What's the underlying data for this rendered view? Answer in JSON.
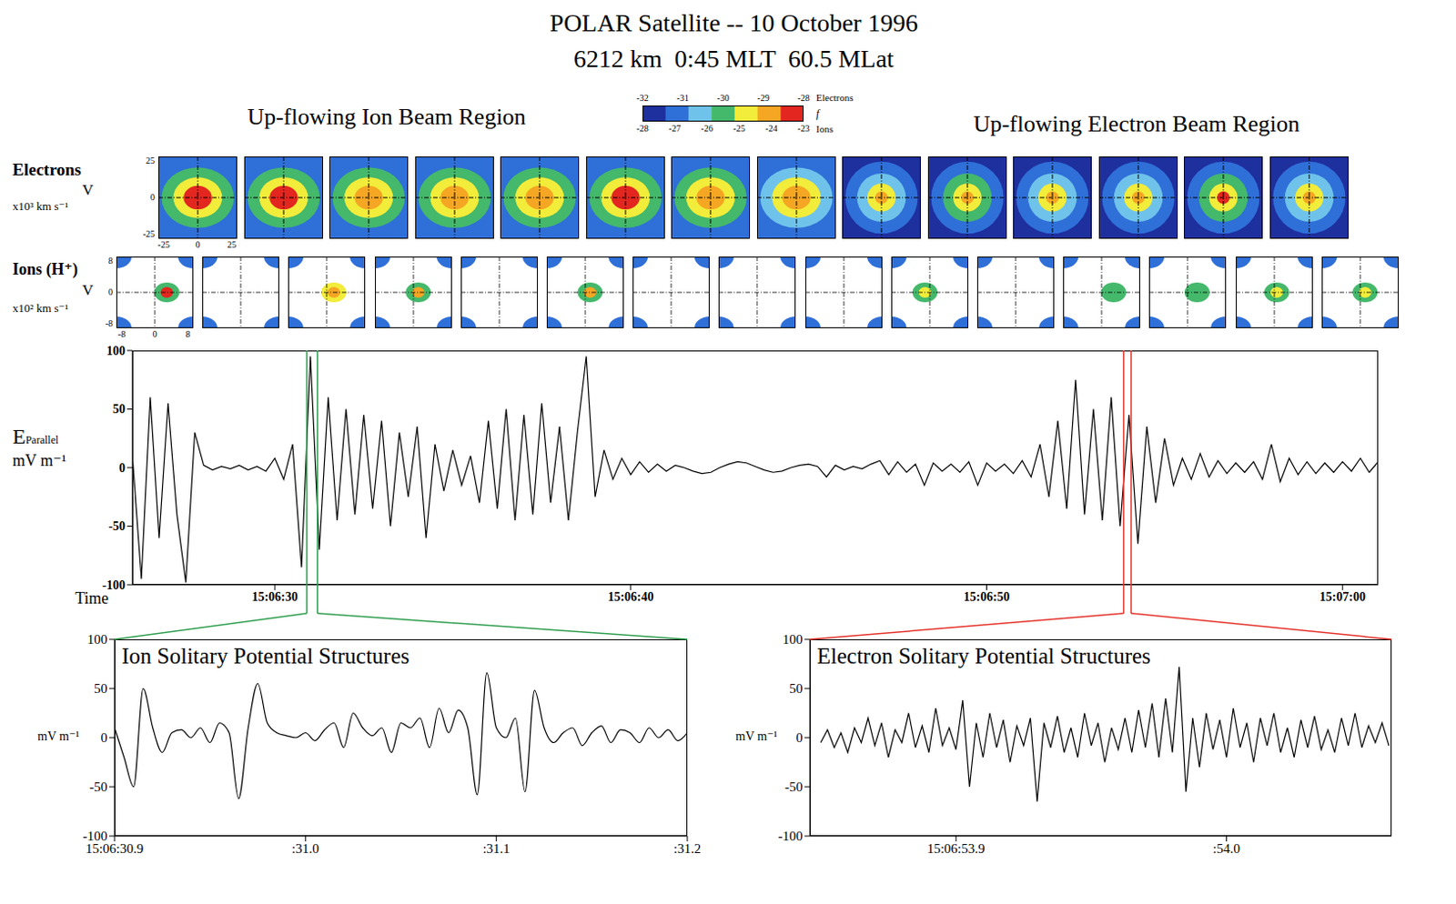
{
  "title": "POLAR Satellite -- 10 October 1996",
  "subtitle": "6212 km  0:45 MLT  60.5 MLat",
  "regions": [
    "Up-flowing Ion Beam Region",
    "Up-flowing Electron Beam Region"
  ],
  "colorbar": {
    "label": "f",
    "colors": [
      "#1e2f9e",
      "#2f6fd8",
      "#6fc3ea",
      "#44b86b",
      "#f2ec3a",
      "#f5a623",
      "#e3261f"
    ],
    "electrons": {
      "label": "Electrons",
      "range": [
        -32,
        -28
      ],
      "ticks": [
        -32,
        -31,
        -30,
        -29,
        -28
      ]
    },
    "ions": {
      "label": "Ions",
      "range": [
        -28,
        -23
      ],
      "ticks": [
        -28,
        -27,
        -26,
        -25,
        -24,
        -23
      ]
    }
  },
  "distributions": {
    "electrons": {
      "label": "Electrons",
      "axis_label": "V",
      "unit": "x10³ km s⁻¹",
      "ticks": [
        -25,
        0,
        25
      ],
      "panels": [
        {
          "background": -31.4,
          "rings": [
            -30.3,
            -29.3,
            -28.2
          ]
        },
        {
          "background": -31.4,
          "rings": [
            -30.2,
            -29.2,
            -28.3
          ]
        },
        {
          "background": -31.3,
          "rings": [
            -30.3,
            -29.3,
            -28.4
          ]
        },
        {
          "background": -31.3,
          "rings": [
            -30.2,
            -29.2,
            -28.6
          ]
        },
        {
          "background": -31.4,
          "rings": [
            -30.3,
            -29.3,
            -28.6
          ]
        },
        {
          "background": -31.4,
          "rings": [
            -30.2,
            -29.2,
            -28.3
          ]
        },
        {
          "background": -31.3,
          "rings": [
            -30.3,
            -29.3,
            -28.5
          ]
        },
        {
          "background": -31.5,
          "rings": [
            -30.4,
            -29.3,
            -28.6
          ]
        },
        {
          "background": -32,
          "rings": [
            -31.3,
            -30.4,
            -29.4,
            -28.5
          ]
        },
        {
          "background": -32,
          "rings": [
            -31.2,
            -30.3,
            -29.4,
            -28.6
          ]
        },
        {
          "background": -32,
          "rings": [
            -31.3,
            -30.4,
            -29.5,
            -28.6
          ]
        },
        {
          "background": -32,
          "rings": [
            -31.3,
            -30.4,
            -29.4,
            -28.6
          ]
        },
        {
          "background": -32,
          "rings": [
            -31.2,
            -30.3,
            -29.3,
            -28.3
          ]
        },
        {
          "background": -32,
          "rings": [
            -31.3,
            -30.4,
            -29.4,
            -28.6
          ]
        }
      ]
    },
    "ions": {
      "label": "Ions (H⁺)",
      "axis_label": "V",
      "unit": "x10² km s⁻¹",
      "ticks": [
        -8,
        0,
        8
      ],
      "background": -27.5,
      "panels": [
        {
          "beam": [
            -25.5,
            -23.3
          ],
          "beam_v": 2.5
        },
        {
          "beam": []
        },
        {
          "beam": [
            -25,
            -23.5
          ],
          "beam_v": 1.5
        },
        {
          "beam": [
            -25.5,
            -23.8
          ],
          "beam_v": 1
        },
        {
          "beam": []
        },
        {
          "beam": [
            -25.8,
            -24
          ],
          "beam_v": 1
        },
        {
          "beam": []
        },
        {
          "beam": []
        },
        {
          "beam": []
        },
        {
          "beam": [
            -25.8,
            -24.5
          ],
          "beam_v": -1
        },
        {
          "beam": []
        },
        {
          "beam": [
            -25.5
          ],
          "beam_v": 2.5
        },
        {
          "beam": [
            -25.5
          ],
          "beam_v": 2
        },
        {
          "beam": [
            -25.8,
            -24.8
          ],
          "beam_v": 0.5
        },
        {
          "beam": [
            -25.8,
            -24.6
          ],
          "beam_v": 1
        }
      ]
    }
  },
  "chart_data": [
    {
      "type": "line",
      "ylabel": {
        "symbol": "E",
        "subscript": "Parallel",
        "unit": "mV m⁻¹"
      },
      "xlabel": "Time",
      "color": "#000000",
      "xlim": [
        26,
        61
      ],
      "ylim": [
        -100,
        100
      ],
      "xticks": [
        {
          "value": 30,
          "label": "15:06:30"
        },
        {
          "value": 40,
          "label": "15:06:40"
        },
        {
          "value": 50,
          "label": "15:06:50"
        },
        {
          "value": 60,
          "label": "15:07:00"
        }
      ],
      "yticks": [
        -100,
        -50,
        0,
        50,
        100
      ],
      "brackets": [
        {
          "x": [
            30.9,
            31.2
          ],
          "color": "#2f9e4e"
        },
        {
          "x": [
            53.85,
            54.06
          ],
          "color": "#e5332a"
        }
      ],
      "x": [
        26,
        26.25,
        26.5,
        26.75,
        27,
        27.25,
        27.5,
        27.75,
        28,
        28.25,
        28.5,
        28.75,
        29,
        29.25,
        29.5,
        29.75,
        30,
        30.25,
        30.5,
        30.75,
        31,
        31.25,
        31.5,
        31.75,
        32,
        32.25,
        32.5,
        32.75,
        33,
        33.25,
        33.5,
        33.75,
        34,
        34.25,
        34.5,
        34.75,
        35,
        35.25,
        35.5,
        35.75,
        36,
        36.25,
        36.5,
        36.75,
        37,
        37.25,
        37.5,
        37.75,
        38,
        38.25,
        38.5,
        38.75,
        39,
        39.25,
        39.5,
        39.75,
        40,
        40.25,
        40.5,
        40.75,
        41,
        41.25,
        41.5,
        41.75,
        42,
        42.25,
        42.5,
        42.75,
        43,
        43.25,
        43.5,
        43.75,
        44,
        44.25,
        44.5,
        44.75,
        45,
        45.25,
        45.5,
        45.75,
        46,
        46.25,
        46.5,
        46.75,
        47,
        47.25,
        47.5,
        47.75,
        48,
        48.25,
        48.5,
        48.75,
        49,
        49.25,
        49.5,
        49.75,
        50,
        50.25,
        50.5,
        50.75,
        51,
        51.25,
        51.5,
        51.75,
        52,
        52.25,
        52.5,
        52.75,
        53,
        53.25,
        53.5,
        53.75,
        54,
        54.25,
        54.5,
        54.75,
        55,
        55.25,
        55.5,
        55.75,
        56,
        56.25,
        56.5,
        56.75,
        57,
        57.25,
        57.5,
        57.75,
        58,
        58.25,
        58.5,
        58.75,
        59,
        59.25,
        59.5,
        59.75,
        60,
        60.25,
        60.5,
        60.75,
        61
      ],
      "values": [
        10,
        -95,
        60,
        -60,
        55,
        -40,
        -98,
        30,
        2,
        -2,
        1,
        -1,
        2,
        -2,
        1,
        -3,
        8,
        -10,
        20,
        -85,
        95,
        -70,
        60,
        -45,
        50,
        -40,
        45,
        -35,
        40,
        -50,
        30,
        -25,
        35,
        -60,
        20,
        -20,
        15,
        -15,
        10,
        -30,
        40,
        -35,
        50,
        -45,
        45,
        -40,
        55,
        -30,
        35,
        -45,
        30,
        95,
        -25,
        15,
        -10,
        8,
        -6,
        5,
        -4,
        3,
        -3,
        2,
        0,
        -3,
        -5,
        -4,
        0,
        3,
        5,
        4,
        1,
        -2,
        -4,
        -3,
        0,
        2,
        3,
        1,
        -8,
        2,
        -2,
        1,
        -1,
        3,
        6,
        -6,
        5,
        -4,
        3,
        -15,
        4,
        -3,
        3,
        -4,
        5,
        -15,
        4,
        -3,
        3,
        -5,
        6,
        -8,
        20,
        -25,
        40,
        -35,
        75,
        -40,
        50,
        -45,
        60,
        -50,
        45,
        -65,
        35,
        -30,
        25,
        -15,
        8,
        -10,
        12,
        -8,
        6,
        -5,
        4,
        -4,
        5,
        -10,
        20,
        -12,
        8,
        -6,
        5,
        -5,
        4,
        -4,
        5,
        -3,
        8,
        -4,
        5
      ]
    },
    {
      "type": "line",
      "title": "Ion Solitary Potential Structures",
      "ylabel": "mV m⁻¹",
      "color": "#000000",
      "xlim": [
        30.9,
        31.2
      ],
      "ylim": [
        -100,
        100
      ],
      "xticks": [
        {
          "value": 30.9,
          "label": "15:06:30.9"
        },
        {
          "value": 31,
          "label": ":31.0"
        },
        {
          "value": 31.1,
          "label": ":31.1"
        },
        {
          "value": 31.2,
          "label": ":31.2"
        }
      ],
      "yticks": [
        -100,
        -50,
        0,
        50,
        100
      ],
      "x": [
        30.9,
        30.905,
        30.91,
        30.915,
        30.92,
        30.925,
        30.93,
        30.935,
        30.94,
        30.945,
        30.95,
        30.955,
        30.96,
        30.965,
        30.97,
        30.975,
        30.98,
        30.985,
        30.99,
        30.995,
        31,
        31.005,
        31.01,
        31.015,
        31.02,
        31.025,
        31.03,
        31.035,
        31.04,
        31.045,
        31.05,
        31.055,
        31.06,
        31.065,
        31.07,
        31.075,
        31.08,
        31.085,
        31.09,
        31.095,
        31.1,
        31.105,
        31.11,
        31.115,
        31.12,
        31.125,
        31.13,
        31.135,
        31.14,
        31.145,
        31.15,
        31.155,
        31.16,
        31.165,
        31.17,
        31.175,
        31.18,
        31.185,
        31.19,
        31.195,
        31.2
      ],
      "values": [
        10,
        -20,
        -50,
        50,
        10,
        -15,
        5,
        8,
        0,
        10,
        -5,
        15,
        5,
        -62,
        10,
        55,
        15,
        5,
        2,
        0,
        5,
        -3,
        8,
        15,
        -10,
        25,
        10,
        2,
        10,
        -15,
        15,
        10,
        20,
        -10,
        30,
        5,
        28,
        10,
        -58,
        66,
        10,
        0,
        20,
        -55,
        48,
        10,
        -5,
        5,
        10,
        -8,
        5,
        12,
        -5,
        8,
        5,
        -5,
        10,
        0,
        8,
        -3,
        5
      ]
    },
    {
      "type": "line",
      "title": "Electron Solitary Potential Structures",
      "ylabel": "mV m⁻¹",
      "color": "#000000",
      "xlim": [
        53.846,
        54.061
      ],
      "ylim": [
        -100,
        100
      ],
      "xticks": [
        {
          "value": 53.9,
          "label": "15:06:53.9"
        },
        {
          "value": 54,
          "label": ":54.0"
        }
      ],
      "yticks": [
        -100,
        -50,
        0,
        50,
        100
      ],
      "x": [
        53.85,
        53.8525,
        53.855,
        53.8575,
        53.86,
        53.8625,
        53.865,
        53.8675,
        53.87,
        53.8725,
        53.875,
        53.8775,
        53.88,
        53.8825,
        53.885,
        53.8875,
        53.89,
        53.8925,
        53.895,
        53.8975,
        53.9,
        53.9025,
        53.905,
        53.9075,
        53.91,
        53.9125,
        53.915,
        53.9175,
        53.92,
        53.9225,
        53.925,
        53.9275,
        53.93,
        53.9325,
        53.935,
        53.9375,
        53.94,
        53.9425,
        53.945,
        53.9475,
        53.95,
        53.9525,
        53.955,
        53.9575,
        53.96,
        53.9625,
        53.965,
        53.9675,
        53.97,
        53.9725,
        53.975,
        53.9775,
        53.98,
        53.9825,
        53.985,
        53.9875,
        53.99,
        53.9925,
        53.995,
        53.9975,
        54,
        54.0025,
        54.005,
        54.0075,
        54.01,
        54.0125,
        54.015,
        54.0175,
        54.02,
        54.0225,
        54.025,
        54.0275,
        54.03,
        54.0325,
        54.035,
        54.0375,
        54.04,
        54.0425,
        54.045,
        54.0475,
        54.05,
        54.0525,
        54.055,
        54.0575,
        54.06
      ],
      "values": [
        -5,
        8,
        -10,
        5,
        -15,
        10,
        -5,
        20,
        -8,
        15,
        -20,
        8,
        -5,
        25,
        -10,
        12,
        -15,
        30,
        -8,
        10,
        -12,
        38,
        -50,
        15,
        -20,
        25,
        -10,
        18,
        -25,
        12,
        -8,
        20,
        -65,
        15,
        -10,
        22,
        -15,
        10,
        -20,
        25,
        -8,
        15,
        -25,
        10,
        -12,
        20,
        -15,
        28,
        -10,
        35,
        -20,
        40,
        -15,
        72,
        -55,
        20,
        -30,
        25,
        -12,
        18,
        -20,
        30,
        -10,
        15,
        -25,
        20,
        -8,
        25,
        -15,
        10,
        -20,
        18,
        -10,
        22,
        -12,
        8,
        -15,
        20,
        -8,
        25,
        -10,
        12,
        -5,
        15,
        -8
      ]
    }
  ]
}
